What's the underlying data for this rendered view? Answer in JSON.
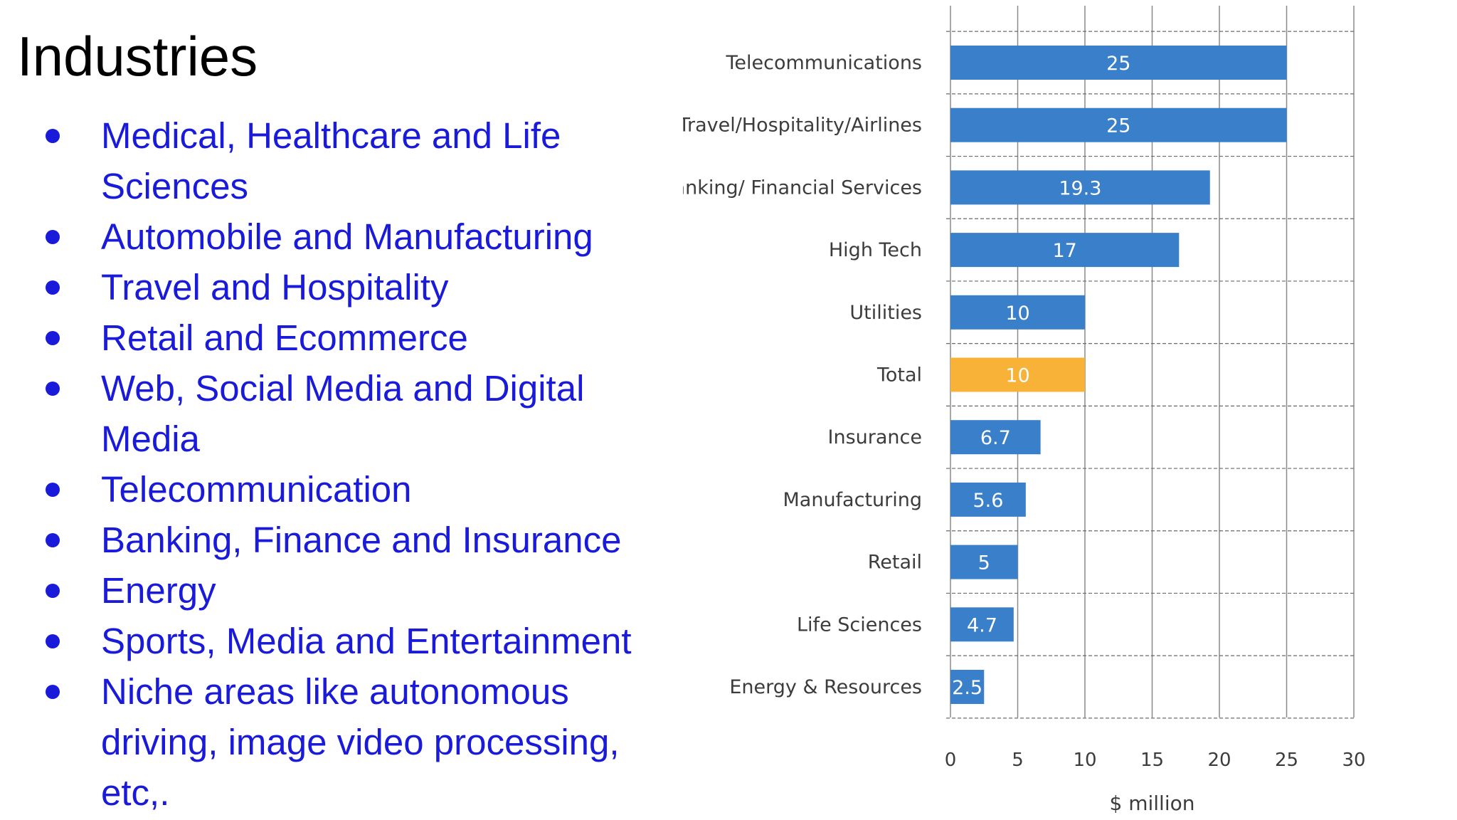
{
  "slide": {
    "title": "Industries",
    "bullets": [
      "Medical, Healthcare and Life Sciences",
      "Automobile and Manufacturing",
      "Travel and Hospitality",
      "Retail and Ecommerce",
      "Web, Social Media and Digital Media",
      "Telecommunication",
      "Banking, Finance and Insurance",
      "Energy",
      "Sports, Media and Entertainment",
      "Niche areas like autonomous driving, image video processing, etc,."
    ]
  },
  "colors": {
    "text_blue": "#1a1adb",
    "bar_blue": "#3a7fc9",
    "bar_highlight": "#f7b237"
  },
  "chart_data": {
    "type": "bar",
    "orientation": "horizontal",
    "categories": [
      "Telecommunications",
      "Travel/Hospitality/Airlines",
      "Banking/ Financial Services",
      "High Tech",
      "Utilities",
      "Total",
      "Insurance",
      "Manufacturing",
      "Retail",
      "Life Sciences",
      "Energy & Resources"
    ],
    "values": [
      25,
      25,
      19.3,
      17,
      10,
      10,
      6.7,
      5.6,
      5,
      4.7,
      2.5
    ],
    "value_labels": [
      "25",
      "25",
      "19.3",
      "17",
      "10",
      "10",
      "6.7",
      "5.6",
      "5",
      "4.7",
      "2.5"
    ],
    "highlight_category": "Total",
    "xlabel": "$ million",
    "xlim": [
      0,
      30
    ],
    "xticks": [
      0,
      5,
      10,
      15,
      20,
      25,
      30
    ],
    "grid": "vertical solid, horizontal dashed"
  }
}
